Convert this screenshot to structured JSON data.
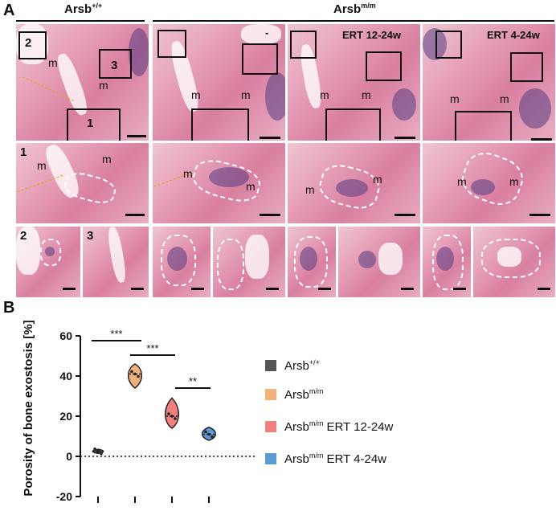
{
  "panel_a": {
    "letter": "A",
    "groups": [
      {
        "name": "Arsb",
        "sup": "+/+"
      },
      {
        "name": "Arsb",
        "sup": "m/m"
      }
    ],
    "treatment_labels": [
      "-",
      "ERT 12-24w",
      "ERT 4-24w"
    ],
    "box_numbers": [
      "1",
      "2",
      "3"
    ],
    "inset_numbers": [
      "1",
      "2",
      "3"
    ],
    "muscle_label": "m"
  },
  "panel_b": {
    "letter": "B",
    "significance": [
      "***",
      "***",
      "**"
    ]
  },
  "chart_data": {
    "type": "violin",
    "ylabel": "Porosity of bone exostosis [%]",
    "ylim": [
      -20,
      60
    ],
    "yticks": [
      "60",
      "40",
      "20",
      "0",
      "-20"
    ],
    "zero_line": "dotted",
    "categories": [
      "Arsb+/+",
      "Arsbm/m",
      "Arsbm/m ERT 12-24w",
      "Arsbm/m ERT 4-24w"
    ],
    "medians": [
      2.5,
      41,
      20,
      11
    ],
    "ranges": [
      [
        1.5,
        3.5
      ],
      [
        34,
        46
      ],
      [
        14,
        29
      ],
      [
        8,
        14.5
      ]
    ],
    "colors": [
      "#555555",
      "#f0b27a",
      "#f08080",
      "#5b9bd5"
    ],
    "legend": [
      {
        "name": "Arsb",
        "sup": "+/+",
        "suffix": "",
        "color": "#555555"
      },
      {
        "name": "Arsb",
        "sup": "m/m",
        "suffix": "",
        "color": "#f0b27a"
      },
      {
        "name": "Arsb",
        "sup": "m/m",
        "suffix": " ERT 12-24w",
        "color": "#f08080"
      },
      {
        "name": "Arsb",
        "sup": "m/m",
        "suffix": " ERT 4-24w",
        "color": "#5b9bd5"
      }
    ]
  }
}
